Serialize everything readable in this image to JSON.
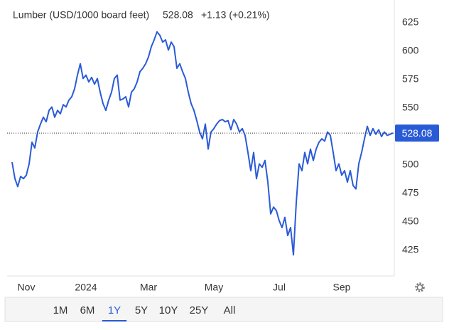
{
  "chart_data": {
    "type": "line",
    "title": "Lumber (USD/1000 board feet)",
    "last": 528.08,
    "change": "+1.13 (+0.21%)",
    "color": "#2a5bd7",
    "change_color": "#3cb043",
    "values": [
      502.5,
      488,
      481,
      490,
      488,
      491,
      501,
      520,
      515,
      529,
      536,
      542,
      538,
      548,
      551,
      542,
      548,
      545,
      553,
      551,
      557,
      560,
      567,
      579,
      589,
      576,
      579,
      573,
      577,
      571,
      576,
      564,
      554,
      548,
      557,
      564,
      576,
      579,
      557,
      558,
      560,
      551,
      564,
      567,
      573,
      582,
      585,
      589,
      595,
      604,
      610,
      617,
      614,
      608,
      610,
      601,
      608,
      604,
      585,
      589,
      582,
      576,
      564,
      554,
      548,
      539,
      529,
      523,
      536,
      514,
      529,
      532,
      536,
      539,
      540,
      538,
      539,
      531,
      540,
      536,
      529,
      532,
      526,
      511,
      495,
      511,
      488,
      501,
      498,
      504,
      485,
      457,
      463,
      460,
      451,
      445,
      454,
      438,
      445,
      421,
      467,
      501,
      495,
      511,
      501,
      514,
      504,
      514,
      520,
      523,
      521,
      529,
      526,
      511,
      495,
      501,
      491,
      495,
      485,
      495,
      482,
      479,
      501,
      511,
      523,
      534,
      526,
      532,
      527,
      531,
      525,
      529,
      526,
      527,
      528.08
    ],
    "xlim": [
      -1.75,
      134.5
    ],
    "xticks": [
      {
        "value": 5,
        "label": "Nov"
      },
      {
        "value": 26,
        "label": "2024"
      },
      {
        "value": 48,
        "label": "Mar"
      },
      {
        "value": 71,
        "label": "May"
      },
      {
        "value": 94,
        "label": "Jul"
      },
      {
        "value": 116,
        "label": "Sep"
      }
    ],
    "ylim": [
      402.5,
      638.75
    ],
    "yticks": [
      425,
      450,
      475,
      500,
      525,
      550,
      575,
      600,
      625
    ],
    "grid": false,
    "ranges": [
      "1M",
      "6M",
      "1Y",
      "5Y",
      "10Y",
      "25Y",
      "All"
    ],
    "selected_range": "1Y"
  }
}
